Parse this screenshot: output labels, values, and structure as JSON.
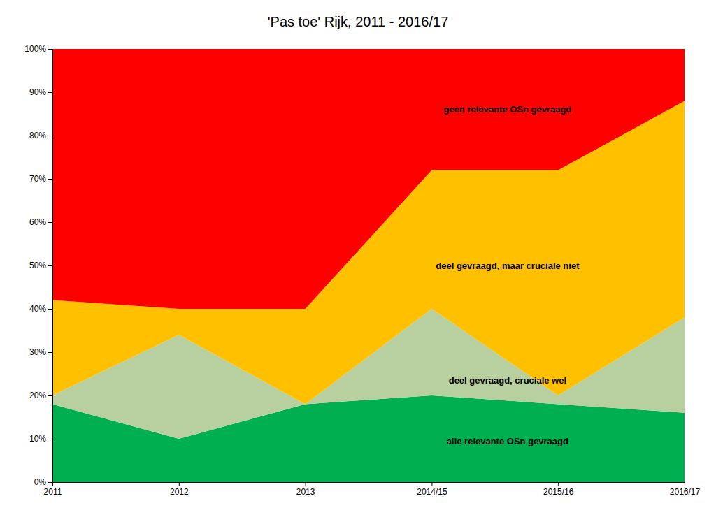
{
  "chart_data": {
    "type": "area",
    "stacked": true,
    "title": "'Pas toe' Rijk, 2011 - 2016/17",
    "categories": [
      "2011",
      "2012",
      "2013",
      "2014/15",
      "2015/16",
      "2016/17"
    ],
    "series": [
      {
        "name": "alle relevante OSn gevraagd",
        "color": "#00b050",
        "values": [
          18,
          10,
          18,
          20,
          18,
          16
        ]
      },
      {
        "name": "deel gevraagd, cruciale wel",
        "color": "#b8cfa0",
        "values": [
          2,
          24,
          0,
          20,
          2,
          22
        ]
      },
      {
        "name": "deel gevraagd, maar cruciale niet",
        "color": "#ffc000",
        "values": [
          22,
          6,
          22,
          32,
          52,
          50
        ]
      },
      {
        "name": "geen relevante OSn gevraagd",
        "color": "#ff0000",
        "values": [
          58,
          60,
          60,
          28,
          28,
          12
        ]
      }
    ],
    "ylim": [
      0,
      100
    ],
    "yticks": [
      {
        "value": 0,
        "label": "0%"
      },
      {
        "value": 10,
        "label": "10%"
      },
      {
        "value": 20,
        "label": "20%"
      },
      {
        "value": 30,
        "label": "30%"
      },
      {
        "value": 40,
        "label": "40%"
      },
      {
        "value": 50,
        "label": "50%"
      },
      {
        "value": 60,
        "label": "60%"
      },
      {
        "value": 70,
        "label": "70%"
      },
      {
        "value": 80,
        "label": "80%"
      },
      {
        "value": 90,
        "label": "90%"
      },
      {
        "value": 100,
        "label": "100%"
      }
    ],
    "grid": false
  }
}
